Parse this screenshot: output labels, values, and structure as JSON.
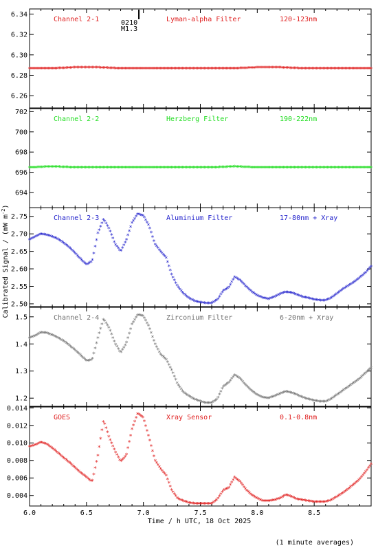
{
  "chart_data": {
    "type": "scatter",
    "ylabel_shared": "Calibrated Signal / (mW m",
    "ylabel_sup": "-2",
    "ylabel_close": ")",
    "xlabel": "Time / h UTC, 18 Oct 2025",
    "footnote": "(1 minute averages)",
    "xlim": [
      6.0,
      9.0
    ],
    "xticks": [
      "6.0",
      "6.5",
      "7.0",
      "7.5",
      "8.0",
      "8.5"
    ],
    "flare_marker": {
      "x": 6.96,
      "label1": "0210",
      "label2": "M1.3"
    },
    "panels": [
      {
        "channel": "Channel 2-1",
        "filter": "Lyman-alpha Filter",
        "band": "120-123nm",
        "color": "#e02020",
        "ylim": [
          6.248,
          6.345
        ],
        "yticks": [
          "6.26",
          "6.28",
          "6.30",
          "6.32",
          "6.34"
        ],
        "x": [
          6.0,
          6.2,
          6.4,
          6.6,
          6.8,
          7.0,
          7.2,
          7.4,
          7.6,
          7.8,
          8.0,
          8.2,
          8.4,
          8.6,
          8.8,
          9.0
        ],
        "y": [
          6.286,
          6.286,
          6.287,
          6.287,
          6.286,
          6.286,
          6.286,
          6.286,
          6.286,
          6.286,
          6.287,
          6.287,
          6.286,
          6.286,
          6.286,
          6.286
        ]
      },
      {
        "channel": "Channel 2-2",
        "filter": "Herzberg Filter",
        "band": "190-222nm",
        "color": "#22dd22",
        "ylim": [
          692.5,
          702.3
        ],
        "yticks": [
          "694",
          "696",
          "698",
          "700",
          "702"
        ],
        "x": [
          6.0,
          6.2,
          6.4,
          6.6,
          6.8,
          7.0,
          7.2,
          7.4,
          7.6,
          7.8,
          8.0,
          8.2,
          8.4,
          8.6,
          8.8,
          9.0
        ],
        "y": [
          696.4,
          696.5,
          696.4,
          696.4,
          696.4,
          696.4,
          696.4,
          696.4,
          696.4,
          696.5,
          696.4,
          696.4,
          696.4,
          696.4,
          696.4,
          696.4
        ]
      },
      {
        "channel": "Channel 2-3",
        "filter": "Aluminium Filter",
        "band": "17-80nm + Xray",
        "color": "#2222cc",
        "ylim": [
          2.492,
          2.775
        ],
        "yticks": [
          "2.50",
          "2.55",
          "2.60",
          "2.65",
          "2.70",
          "2.75"
        ],
        "x": [
          6.0,
          6.05,
          6.1,
          6.15,
          6.2,
          6.25,
          6.3,
          6.35,
          6.4,
          6.45,
          6.5,
          6.55,
          6.6,
          6.65,
          6.7,
          6.75,
          6.8,
          6.85,
          6.9,
          6.95,
          7.0,
          7.05,
          7.1,
          7.15,
          7.2,
          7.25,
          7.3,
          7.35,
          7.4,
          7.45,
          7.5,
          7.55,
          7.6,
          7.65,
          7.7,
          7.75,
          7.8,
          7.85,
          7.9,
          7.95,
          8.0,
          8.05,
          8.1,
          8.15,
          8.2,
          8.25,
          8.3,
          8.35,
          8.4,
          8.45,
          8.5,
          8.55,
          8.6,
          8.65,
          8.7,
          8.75,
          8.8,
          8.85,
          8.9,
          8.95,
          9.0
        ],
        "y": [
          2.682,
          2.69,
          2.698,
          2.695,
          2.69,
          2.683,
          2.672,
          2.659,
          2.643,
          2.625,
          2.61,
          2.62,
          2.7,
          2.74,
          2.712,
          2.67,
          2.648,
          2.68,
          2.73,
          2.755,
          2.75,
          2.72,
          2.67,
          2.648,
          2.63,
          2.58,
          2.548,
          2.528,
          2.514,
          2.506,
          2.502,
          2.5,
          2.5,
          2.51,
          2.535,
          2.545,
          2.575,
          2.565,
          2.548,
          2.533,
          2.522,
          2.515,
          2.512,
          2.518,
          2.526,
          2.532,
          2.53,
          2.524,
          2.518,
          2.514,
          2.51,
          2.508,
          2.508,
          2.515,
          2.527,
          2.54,
          2.55,
          2.56,
          2.573,
          2.587,
          2.605
        ]
      },
      {
        "channel": "Channel 2-4",
        "filter": "Zirconium Filter",
        "band": "6-20nm + Xray",
        "color": "#707070",
        "ylim": [
          1.17,
          1.535
        ],
        "yticks": [
          "1.2",
          "1.3",
          "1.4",
          "1.5"
        ],
        "x": [
          6.0,
          6.05,
          6.1,
          6.15,
          6.2,
          6.25,
          6.3,
          6.35,
          6.4,
          6.45,
          6.5,
          6.55,
          6.6,
          6.65,
          6.7,
          6.75,
          6.8,
          6.85,
          6.9,
          6.95,
          7.0,
          7.05,
          7.1,
          7.15,
          7.2,
          7.25,
          7.3,
          7.35,
          7.4,
          7.45,
          7.5,
          7.55,
          7.6,
          7.65,
          7.7,
          7.75,
          7.8,
          7.85,
          7.9,
          7.95,
          8.0,
          8.05,
          8.1,
          8.15,
          8.2,
          8.25,
          8.3,
          8.35,
          8.4,
          8.45,
          8.5,
          8.55,
          8.6,
          8.65,
          8.7,
          8.75,
          8.8,
          8.85,
          8.9,
          8.95,
          9.0
        ],
        "y": [
          1.42,
          1.428,
          1.44,
          1.438,
          1.43,
          1.42,
          1.408,
          1.392,
          1.375,
          1.355,
          1.335,
          1.34,
          1.42,
          1.49,
          1.455,
          1.4,
          1.365,
          1.4,
          1.47,
          1.505,
          1.5,
          1.46,
          1.4,
          1.36,
          1.34,
          1.3,
          1.25,
          1.22,
          1.205,
          1.193,
          1.186,
          1.18,
          1.18,
          1.195,
          1.24,
          1.255,
          1.283,
          1.27,
          1.245,
          1.225,
          1.21,
          1.2,
          1.198,
          1.205,
          1.214,
          1.222,
          1.218,
          1.21,
          1.2,
          1.194,
          1.189,
          1.185,
          1.185,
          1.195,
          1.21,
          1.225,
          1.24,
          1.255,
          1.27,
          1.29,
          1.31
        ]
      },
      {
        "channel": "GOES",
        "filter": "Xray Sensor",
        "band": "0.1-0.8nm",
        "color": "#e02020",
        "ylim": [
          0.0028,
          0.0141
        ],
        "yticks": [
          "0.004",
          "0.006",
          "0.008",
          "0.010",
          "0.012",
          "0.014"
        ],
        "x": [
          6.0,
          6.05,
          6.1,
          6.15,
          6.2,
          6.25,
          6.3,
          6.35,
          6.4,
          6.45,
          6.5,
          6.55,
          6.6,
          6.65,
          6.7,
          6.75,
          6.8,
          6.85,
          6.9,
          6.95,
          7.0,
          7.05,
          7.1,
          7.15,
          7.2,
          7.25,
          7.3,
          7.35,
          7.4,
          7.45,
          7.5,
          7.55,
          7.6,
          7.65,
          7.7,
          7.75,
          7.8,
          7.85,
          7.9,
          7.95,
          8.0,
          8.05,
          8.1,
          8.15,
          8.2,
          8.25,
          8.3,
          8.35,
          8.4,
          8.45,
          8.5,
          8.55,
          8.6,
          8.65,
          8.7,
          8.75,
          8.8,
          8.85,
          8.9,
          8.95,
          9.0
        ],
        "y": [
          0.0095,
          0.0097,
          0.01,
          0.0098,
          0.0093,
          0.0088,
          0.0082,
          0.0077,
          0.0071,
          0.0065,
          0.006,
          0.0055,
          0.0085,
          0.0125,
          0.0105,
          0.009,
          0.0078,
          0.0085,
          0.0115,
          0.0133,
          0.0128,
          0.0105,
          0.008,
          0.007,
          0.0062,
          0.0045,
          0.0036,
          0.0033,
          0.0031,
          0.003,
          0.003,
          0.003,
          0.003,
          0.0035,
          0.0045,
          0.0048,
          0.006,
          0.0055,
          0.0046,
          0.004,
          0.0036,
          0.0033,
          0.0033,
          0.0034,
          0.0036,
          0.004,
          0.0038,
          0.0035,
          0.0034,
          0.0033,
          0.0032,
          0.0032,
          0.0032,
          0.0034,
          0.0038,
          0.0042,
          0.0047,
          0.0052,
          0.0058,
          0.0066,
          0.0075
        ]
      }
    ]
  }
}
